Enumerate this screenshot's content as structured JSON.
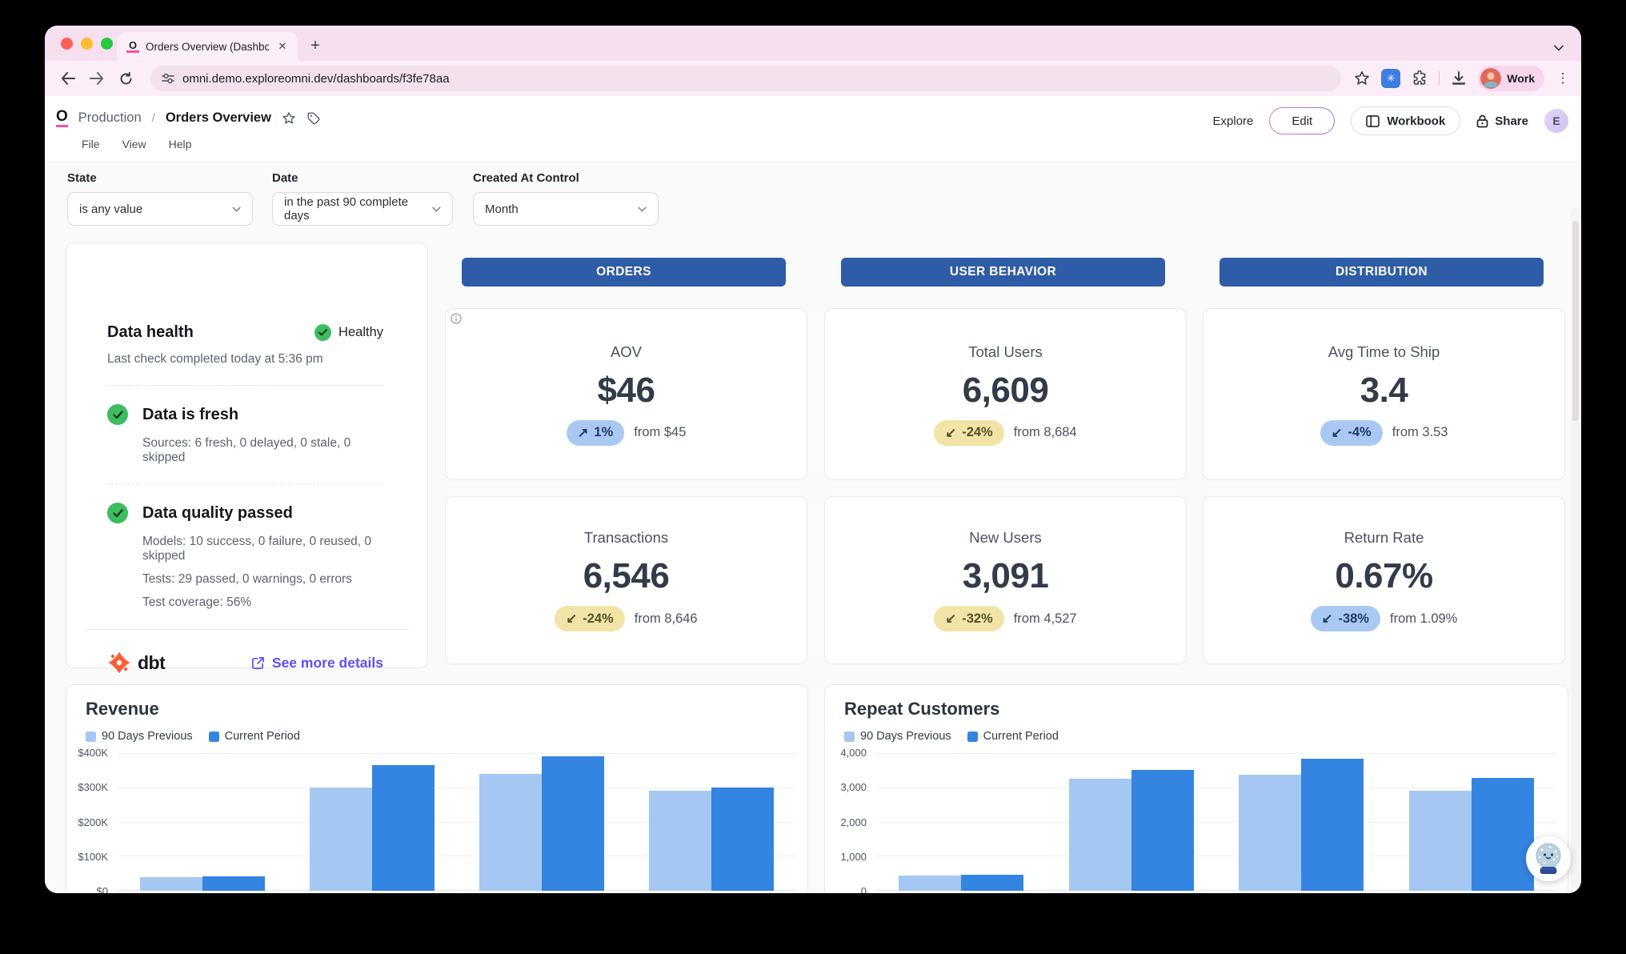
{
  "browser": {
    "tab_title": "Orders Overview (Dashboard)",
    "new_tab": "+",
    "url": "omni.demo.exploreomni.dev/dashboards/f3fe78aa",
    "profile_label": "Work",
    "ext_glyph": "✳"
  },
  "header": {
    "breadcrumb": {
      "project": "Production",
      "separator": "/",
      "page": "Orders Overview"
    },
    "logo_glyph": "O",
    "menus": [
      "File",
      "View",
      "Help"
    ],
    "actions": {
      "explore": "Explore",
      "edit": "Edit",
      "workbook": "Workbook",
      "share": "Share",
      "avatar_initial": "E"
    }
  },
  "filters": [
    {
      "label": "State",
      "value": "is any value"
    },
    {
      "label": "Date",
      "value": "in the past 90 complete days"
    },
    {
      "label": "Created At Control",
      "value": "Month"
    }
  ],
  "data_health": {
    "title": "Data health",
    "status": "Healthy",
    "last_check": "Last check completed today at 5:36 pm",
    "checks": [
      {
        "title": "Data is fresh",
        "details": [
          "Sources: 6 fresh, 0 delayed, 0 stale, 0 skipped"
        ]
      },
      {
        "title": "Data quality passed",
        "details": [
          "Models: 10 success, 0 failure, 0 reused, 0 skipped",
          "Tests: 29 passed, 0 warnings, 0 errors",
          "Test coverage: 56%"
        ]
      }
    ],
    "logo_text": "dbt",
    "link": "See more details"
  },
  "sections": [
    "ORDERS",
    "USER BEHAVIOR",
    "DISTRIBUTION"
  ],
  "kpis": [
    {
      "label": "AOV",
      "value": "$46",
      "arrow": "↗",
      "delta": "1%",
      "tone": "blue",
      "from": "from $45"
    },
    {
      "label": "Total Users",
      "value": "6,609",
      "arrow": "↙",
      "delta": "-24%",
      "tone": "yellow",
      "from": "from 8,684"
    },
    {
      "label": "Avg Time to Ship",
      "value": "3.4",
      "arrow": "↙",
      "delta": "-4%",
      "tone": "blue",
      "from": "from 3.53"
    },
    {
      "label": "Transactions",
      "value": "6,546",
      "arrow": "↙",
      "delta": "-24%",
      "tone": "yellow",
      "from": "from 8,646"
    },
    {
      "label": "New Users",
      "value": "3,091",
      "arrow": "↙",
      "delta": "-32%",
      "tone": "yellow",
      "from": "from 4,527"
    },
    {
      "label": "Return Rate",
      "value": "0.67%",
      "arrow": "↙",
      "delta": "-38%",
      "tone": "blue",
      "from": "from 1.09%"
    }
  ],
  "chart_data": [
    {
      "type": "bar",
      "title": "Revenue",
      "legend": [
        "90 Days Previous",
        "Current Period"
      ],
      "colors": [
        "#A4C8F2",
        "#3484E2"
      ],
      "y_tick_labels": [
        "$400K",
        "$300K",
        "$200K",
        "$100K",
        "$0"
      ],
      "ylim": [
        0,
        400000
      ],
      "grid": true,
      "legend_position": "top-left",
      "series": [
        {
          "name": "90 Days Previous",
          "values": [
            40000,
            300000,
            340000,
            290000
          ]
        },
        {
          "name": "Current Period",
          "values": [
            42000,
            365000,
            390000,
            300000
          ]
        }
      ]
    },
    {
      "type": "bar",
      "title": "Repeat Customers",
      "legend": [
        "90 Days Previous",
        "Current Period"
      ],
      "colors": [
        "#A4C8F2",
        "#3484E2"
      ],
      "y_tick_labels": [
        "4,000",
        "3,000",
        "2,000",
        "1,000",
        "0"
      ],
      "ylim": [
        0,
        4000
      ],
      "grid": true,
      "legend_position": "top-left",
      "series": [
        {
          "name": "90 Days Previous",
          "values": [
            450,
            3250,
            3380,
            2900
          ]
        },
        {
          "name": "Current Period",
          "values": [
            470,
            3520,
            3840,
            3270
          ]
        }
      ]
    }
  ],
  "colors": {
    "banner_blue": "#2E5CA6",
    "pill_blue_bg": "#A9C9F3",
    "pill_yellow_bg": "#F1E4A6",
    "bar_previous": "#A4C8F2",
    "bar_current": "#3484E2",
    "healthy_green": "#3DBD5E",
    "dbt_orange": "#FF5C35",
    "link_purple": "#5E50EE",
    "chrome_pink": "#F6E0F0"
  }
}
